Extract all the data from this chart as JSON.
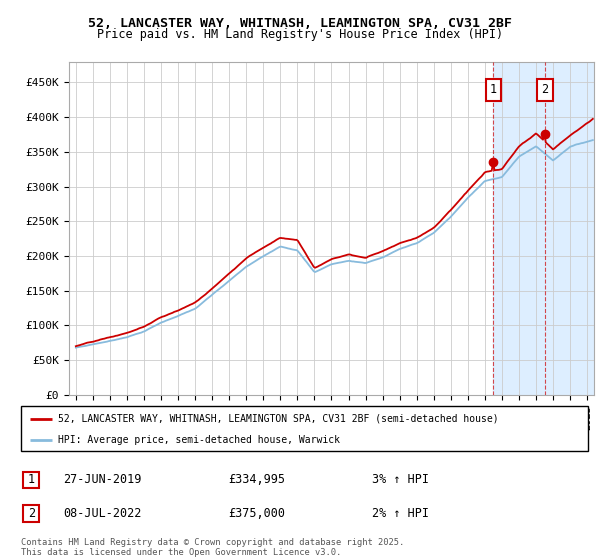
{
  "title_line1": "52, LANCASTER WAY, WHITNASH, LEAMINGTON SPA, CV31 2BF",
  "title_line2": "Price paid vs. HM Land Registry's House Price Index (HPI)",
  "ylim": [
    0,
    480000
  ],
  "yticks": [
    0,
    50000,
    100000,
    150000,
    200000,
    250000,
    300000,
    350000,
    400000,
    450000
  ],
  "ytick_labels": [
    "£0",
    "£50K",
    "£100K",
    "£150K",
    "£200K",
    "£250K",
    "£300K",
    "£350K",
    "£400K",
    "£450K"
  ],
  "xlim_start": 1994.6,
  "xlim_end": 2025.4,
  "transaction1_x": 2019.49,
  "transaction1_y": 334995,
  "transaction2_x": 2022.52,
  "transaction2_y": 375000,
  "transaction1_label": "27-JUN-2019",
  "transaction1_price": "£334,995",
  "transaction1_hpi": "3% ↑ HPI",
  "transaction2_label": "08-JUL-2022",
  "transaction2_price": "£375,000",
  "transaction2_hpi": "2% ↑ HPI",
  "legend_line1": "52, LANCASTER WAY, WHITNASH, LEAMINGTON SPA, CV31 2BF (semi-detached house)",
  "legend_line2": "HPI: Average price, semi-detached house, Warwick",
  "footer": "Contains HM Land Registry data © Crown copyright and database right 2025.\nThis data is licensed under the Open Government Licence v3.0.",
  "line_color_paid": "#cc0000",
  "line_color_hpi": "#88bbdd",
  "background_shade": "#ddeeff",
  "grid_color": "#cccccc",
  "annotation_box_color": "#cc0000",
  "hpi_waypoints_x": [
    1995,
    1996,
    1997,
    1998,
    1999,
    2000,
    2001,
    2002,
    2003,
    2004,
    2005,
    2006,
    2007,
    2008,
    2009,
    2010,
    2011,
    2012,
    2013,
    2014,
    2015,
    2016,
    2017,
    2018,
    2019,
    2020,
    2021,
    2022,
    2023,
    2024,
    2025.4
  ],
  "hpi_waypoints_y": [
    68000,
    73000,
    78000,
    84000,
    92000,
    105000,
    115000,
    125000,
    145000,
    165000,
    185000,
    200000,
    215000,
    210000,
    178000,
    190000,
    195000,
    192000,
    200000,
    212000,
    220000,
    235000,
    258000,
    285000,
    310000,
    315000,
    345000,
    360000,
    340000,
    360000,
    370000
  ],
  "paid_waypoints_x": [
    1995,
    1996,
    1997,
    1998,
    1999,
    2000,
    2001,
    2002,
    2003,
    2004,
    2005,
    2006,
    2007,
    2008,
    2009,
    2010,
    2011,
    2012,
    2013,
    2014,
    2015,
    2016,
    2017,
    2018,
    2019,
    2020,
    2021,
    2022,
    2023,
    2024,
    2025.4
  ],
  "paid_waypoints_y": [
    70000,
    76000,
    82000,
    88000,
    97000,
    110000,
    120000,
    132000,
    152000,
    175000,
    197000,
    213000,
    228000,
    225000,
    185000,
    198000,
    205000,
    200000,
    210000,
    222000,
    230000,
    245000,
    270000,
    298000,
    324000,
    328000,
    360000,
    378000,
    355000,
    375000,
    400000
  ]
}
